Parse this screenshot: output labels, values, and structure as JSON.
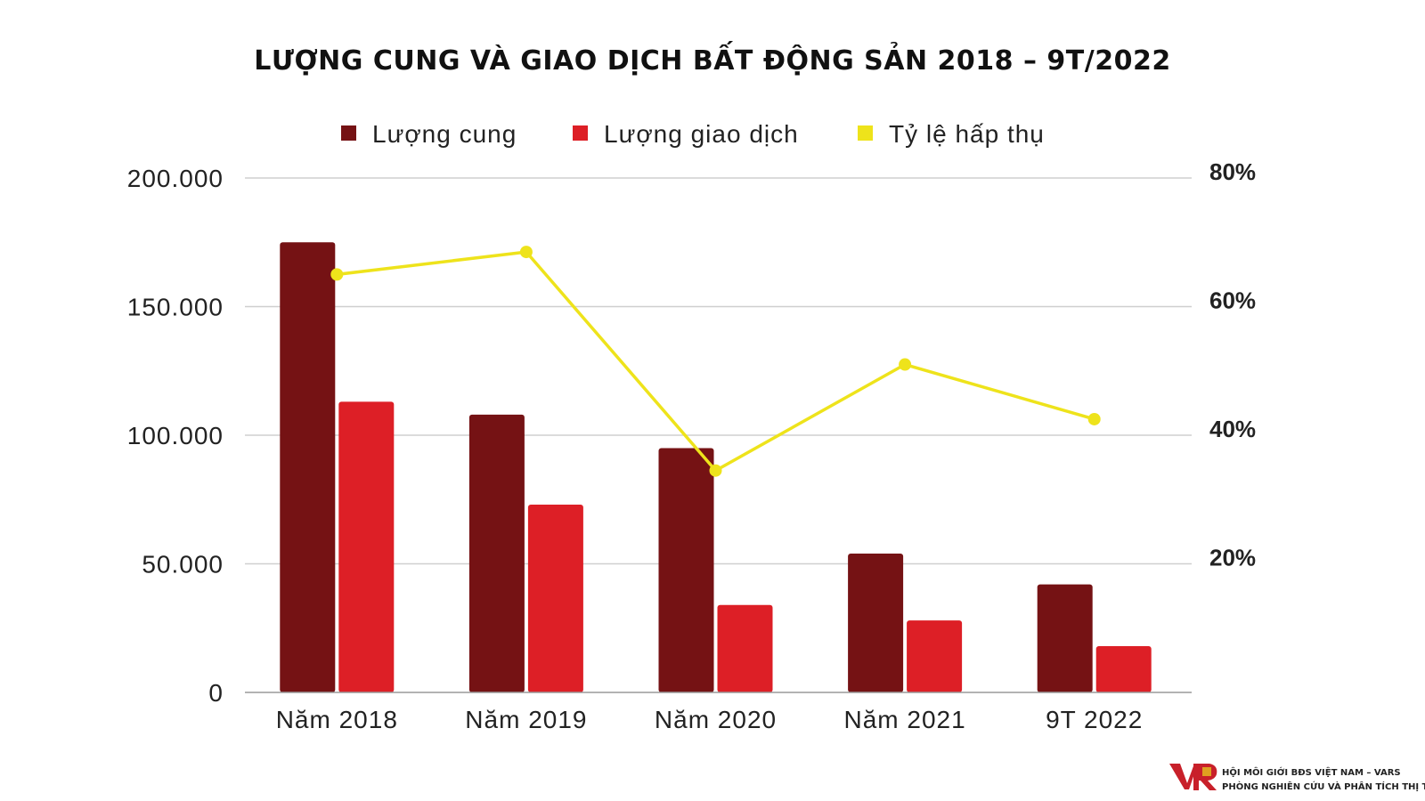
{
  "chart_data": {
    "type": "bar",
    "title": "LƯỢNG CUNG VÀ GIAO DỊCH BẤT ĐỘNG SẢN 2018 – 9T/2022",
    "categories": [
      "Năm 2018",
      "Năm 2019",
      "Năm 2020",
      "Năm 2021",
      "9T 2022"
    ],
    "series": [
      {
        "name": "Lượng cung",
        "kind": "bar",
        "axis": "left",
        "color": "#751214",
        "values": [
          175000,
          108000,
          95000,
          54000,
          42000
        ]
      },
      {
        "name": "Lượng giao dịch",
        "kind": "bar",
        "axis": "left",
        "color": "#dd1f26",
        "values": [
          113000,
          73000,
          34000,
          28000,
          18000
        ]
      },
      {
        "name": "Tỷ lệ hấp thụ",
        "kind": "line",
        "axis": "right",
        "color": "#eee31b",
        "values": [
          65,
          68.5,
          34.5,
          51,
          42.5
        ]
      }
    ],
    "left_axis": {
      "ticks": [
        0,
        50000,
        100000,
        150000,
        200000
      ],
      "tick_labels": [
        "0",
        "50.000",
        "100.000",
        "150.000",
        "200.000"
      ],
      "ylim": [
        0,
        200000
      ]
    },
    "right_axis": {
      "ticks": [
        20,
        40,
        60,
        80
      ],
      "tick_labels": [
        "20%",
        "40%",
        "60%",
        "80%"
      ],
      "ylim": [
        0,
        80
      ]
    },
    "grid": true,
    "legend_position": "top"
  },
  "branding": {
    "org_line_1": "HỘI MÔI GIỚI BĐS VIỆT NAM – VARS",
    "org_line_2": "PHÒNG NGHIÊN CỨU VÀ PHÂN TÍCH THỊ TRƯỜNG",
    "logo_colors": [
      "#c8202a",
      "#e0a020"
    ]
  }
}
